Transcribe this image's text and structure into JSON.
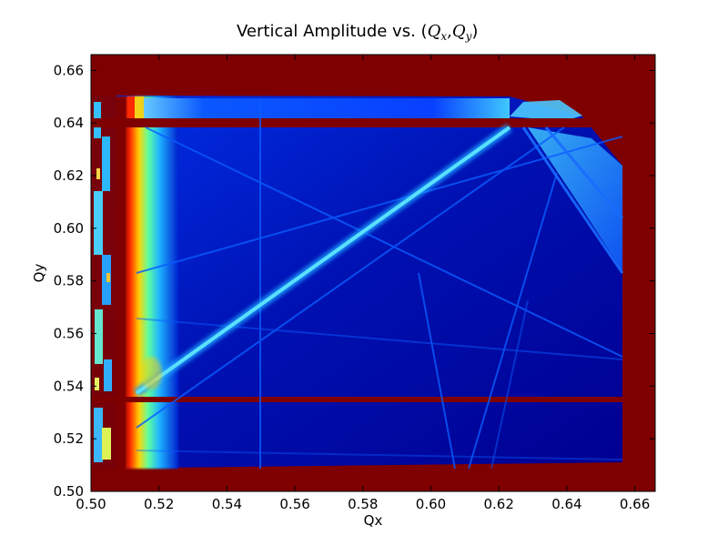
{
  "chart_data": {
    "type": "heatmap",
    "title": "Vertical Amplitude vs. (",
    "title_math": {
      "q1": "Q",
      "q1_sub": "x",
      "sep": ",",
      "q2": "Q",
      "q2_sub": "y",
      "close": ")"
    },
    "xlabel": "Qx",
    "ylabel": "Qy",
    "xlim": [
      0.5,
      0.666
    ],
    "ylim": [
      0.5,
      0.666
    ],
    "xticks": [
      "0.50",
      "0.52",
      "0.54",
      "0.56",
      "0.58",
      "0.60",
      "0.62",
      "0.64",
      "0.66"
    ],
    "yticks": [
      "0.50",
      "0.52",
      "0.54",
      "0.56",
      "0.58",
      "0.60",
      "0.62",
      "0.64",
      "0.66"
    ],
    "colormap": "jet",
    "colors": {
      "background": "#7f0000",
      "base_low": "#00008f",
      "field_mid": "#0018c8",
      "resonance_line": "#0a5cff",
      "main_resonance": "#49d4ff",
      "edge_high": "#ff3000"
    },
    "grid": false,
    "legend": "none"
  }
}
